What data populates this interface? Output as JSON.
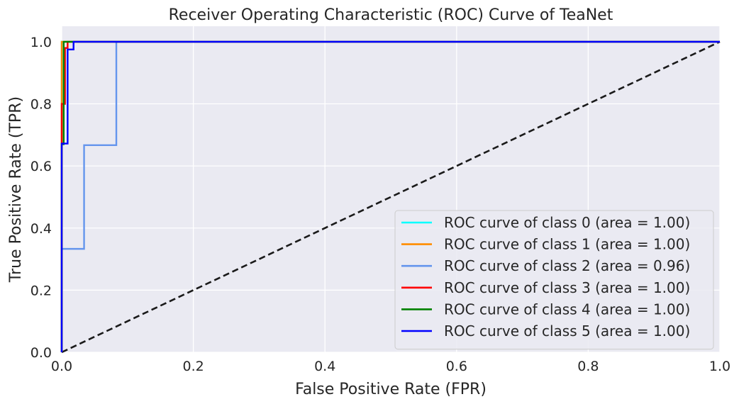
{
  "chart_data": {
    "type": "line",
    "title": "Receiver Operating Characteristic (ROC) Curve of TeaNet",
    "xlabel": "False Positive Rate (FPR)",
    "ylabel": "True Positive Rate (TPR)",
    "xlim": [
      0.0,
      1.0
    ],
    "ylim": [
      0.0,
      1.05
    ],
    "xticks": [
      0.0,
      0.2,
      0.4,
      0.6,
      0.8,
      1.0
    ],
    "xtick_labels": [
      "0.0",
      "0.2",
      "0.4",
      "0.6",
      "0.8",
      "1.0"
    ],
    "yticks": [
      0.0,
      0.2,
      0.4,
      0.6,
      0.8,
      1.0
    ],
    "ytick_labels": [
      "0.0",
      "0.2",
      "0.4",
      "0.6",
      "0.8",
      "1.0"
    ],
    "grid": true,
    "legend_position": "lower-right",
    "background_color": "#eaeaf2",
    "series": [
      {
        "name": "ROC curve of class 0 (area = 1.00)",
        "color": "#00ffff",
        "x": [
          0.0,
          0.0,
          1.0
        ],
        "y": [
          0.0,
          1.0,
          1.0
        ]
      },
      {
        "name": "ROC curve of class 1 (area = 1.00)",
        "color": "#ff8c00",
        "x": [
          0.0,
          0.0,
          1.0
        ],
        "y": [
          0.0,
          1.0,
          1.0
        ]
      },
      {
        "name": "ROC curve of class 2 (area = 0.96)",
        "color": "#6495ed",
        "x": [
          0.0,
          0.0,
          0.034,
          0.034,
          0.083,
          0.083,
          1.0
        ],
        "y": [
          0.0,
          0.333,
          0.333,
          0.667,
          0.667,
          1.0,
          1.0
        ]
      },
      {
        "name": "ROC curve of class 3 (area = 1.00)",
        "color": "#ff0000",
        "x": [
          0.0,
          0.0,
          0.005,
          0.005,
          0.009,
          0.009,
          1.0
        ],
        "y": [
          0.0,
          0.8,
          0.8,
          0.98,
          0.98,
          1.0,
          1.0
        ]
      },
      {
        "name": "ROC curve of class 4 (area = 1.00)",
        "color": "#008000",
        "x": [
          0.0,
          0.0,
          0.003,
          0.003,
          1.0
        ],
        "y": [
          0.0,
          0.67,
          0.67,
          1.0,
          1.0
        ]
      },
      {
        "name": "ROC curve of class 5 (area = 1.00)",
        "color": "#0000ff",
        "x": [
          0.0,
          0.0,
          0.009,
          0.009,
          0.018,
          0.018,
          1.0
        ],
        "y": [
          0.0,
          0.672,
          0.672,
          0.975,
          0.975,
          1.0,
          1.0
        ]
      }
    ],
    "reference_line": {
      "color": "#1a1a1a",
      "style": "dashed",
      "x": [
        0.0,
        1.0
      ],
      "y": [
        0.0,
        1.0
      ]
    }
  }
}
